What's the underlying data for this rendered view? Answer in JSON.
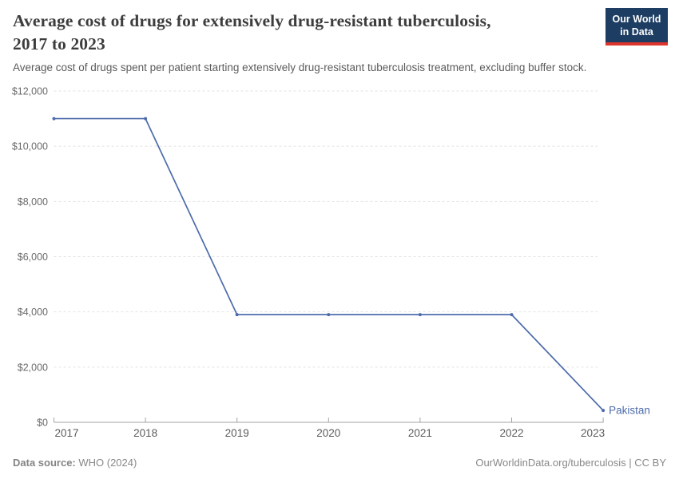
{
  "header": {
    "title_line1": "Average cost of drugs for extensively drug-resistant tuberculosis,",
    "title_line2": "2017 to 2023",
    "subtitle": "Average cost of drugs spent per patient starting extensively drug-resistant tuberculosis treatment, excluding buffer stock.",
    "logo": {
      "line1": "Our World",
      "line2": "in Data"
    }
  },
  "footer": {
    "source_label": "Data source:",
    "source_value": " WHO (2024)",
    "right": "OurWorldinData.org/tuberculosis | CC BY"
  },
  "colors": {
    "line": "#4d6bab",
    "grid": "#e2e2e2",
    "axis": "#a3a3a3",
    "logo_bg": "#1d3d63",
    "logo_accent": "#dd352c"
  },
  "chart_data": {
    "type": "line",
    "title": "Average cost of drugs for extensively drug-resistant tuberculosis, 2017 to 2023",
    "xlabel": "",
    "ylabel": "",
    "x": [
      2017,
      2018,
      2019,
      2020,
      2021,
      2022,
      2023
    ],
    "x_tick_labels": [
      "2017",
      "2018",
      "2019",
      "2020",
      "2021",
      "2022",
      "2023"
    ],
    "series": [
      {
        "name": "Pakistan",
        "values": [
          11000,
          11000,
          3900,
          3900,
          3900,
          3900,
          430
        ]
      }
    ],
    "ylim": [
      0,
      12000
    ],
    "y_ticks": [
      {
        "value": 0,
        "label": "$0"
      },
      {
        "value": 2000,
        "label": "$2,000"
      },
      {
        "value": 4000,
        "label": "$4,000"
      },
      {
        "value": 6000,
        "label": "$6,000"
      },
      {
        "value": 8000,
        "label": "$8,000"
      },
      {
        "value": 10000,
        "label": "$10,000"
      },
      {
        "value": 12000,
        "label": "$12,000"
      }
    ],
    "grid": true,
    "grid_style": "dashed",
    "legend_position": "line-end-label"
  }
}
